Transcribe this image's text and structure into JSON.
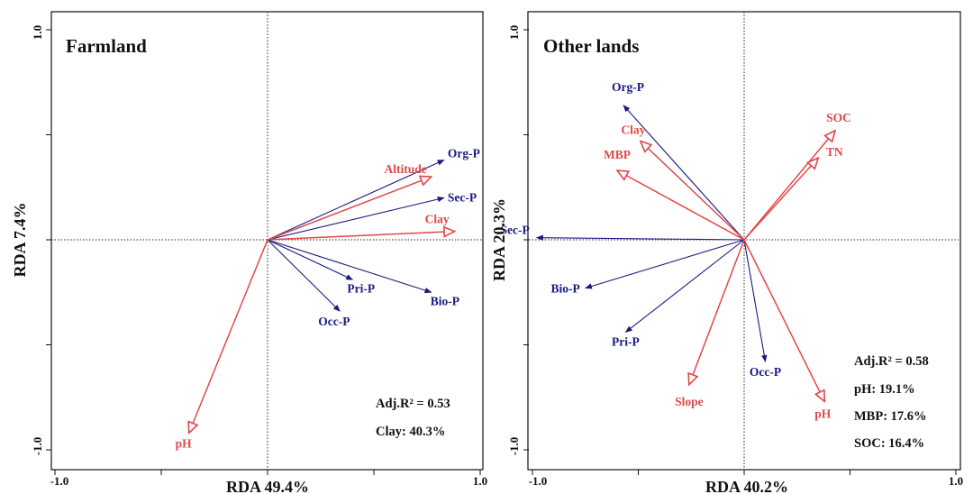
{
  "chart_data": [
    {
      "type": "scatter",
      "subtype": "rda-biplot",
      "title": "Farmland",
      "xlabel": "RDA 49.4%",
      "ylabel": "RDA 7.4%",
      "xlim": [
        -1.0,
        1.0
      ],
      "ylim": [
        -1.0,
        1.0
      ],
      "x_tick_labels": [
        "-1.0",
        "1.0"
      ],
      "y_tick_labels": [
        "-1.0",
        "1.0"
      ],
      "origin": [
        0.0,
        0.0
      ],
      "response_arrows": [
        {
          "name": "Org-P",
          "x": 0.83,
          "y": 0.38
        },
        {
          "name": "Sec-P",
          "x": 0.83,
          "y": 0.2
        },
        {
          "name": "Pri-P",
          "x": 0.4,
          "y": -0.19
        },
        {
          "name": "Bio-P",
          "x": 0.77,
          "y": -0.25
        },
        {
          "name": "Occ-P",
          "x": 0.34,
          "y": -0.34
        }
      ],
      "explanatory_arrows": [
        {
          "name": "Altitude",
          "x": 0.77,
          "y": 0.3
        },
        {
          "name": "Clay",
          "x": 0.88,
          "y": 0.04
        },
        {
          "name": "pH",
          "x": -0.37,
          "y": -0.92
        }
      ],
      "stats": [
        "Adj.R² = 0.53",
        "Clay: 40.3%"
      ],
      "colors": {
        "response": "#1a1a80",
        "explanatory": "#e04848"
      }
    },
    {
      "type": "scatter",
      "subtype": "rda-biplot",
      "title": "Other lands",
      "xlabel": "RDA 40.2%",
      "ylabel": "RDA 20.3%",
      "xlim": [
        -1.0,
        1.0
      ],
      "ylim": [
        -1.0,
        1.0
      ],
      "x_tick_labels": [
        "-1.0",
        "1.0"
      ],
      "y_tick_labels": [
        "-1.0",
        "1.0"
      ],
      "origin": [
        0.0,
        0.0
      ],
      "response_arrows": [
        {
          "name": "Org-P",
          "x": -0.57,
          "y": 0.64
        },
        {
          "name": "Sec-P",
          "x": -0.98,
          "y": 0.01
        },
        {
          "name": "Bio-P",
          "x": -0.75,
          "y": -0.23
        },
        {
          "name": "Pri-P",
          "x": -0.56,
          "y": -0.44
        },
        {
          "name": "Occ-P",
          "x": 0.1,
          "y": -0.58
        }
      ],
      "explanatory_arrows": [
        {
          "name": "SOC",
          "x": 0.43,
          "y": 0.52
        },
        {
          "name": "Clay",
          "x": -0.49,
          "y": 0.47
        },
        {
          "name": "TN",
          "x": 0.35,
          "y": 0.39
        },
        {
          "name": "MBP",
          "x": -0.6,
          "y": 0.33
        },
        {
          "name": "Slope",
          "x": -0.26,
          "y": -0.69
        },
        {
          "name": "pH",
          "x": 0.38,
          "y": -0.77
        }
      ],
      "stats": [
        "Adj.R² = 0.58",
        "pH: 19.1%",
        "MBP: 17.6%",
        "SOC: 16.4%"
      ],
      "colors": {
        "response": "#1a1a80",
        "explanatory": "#e04848"
      }
    }
  ]
}
